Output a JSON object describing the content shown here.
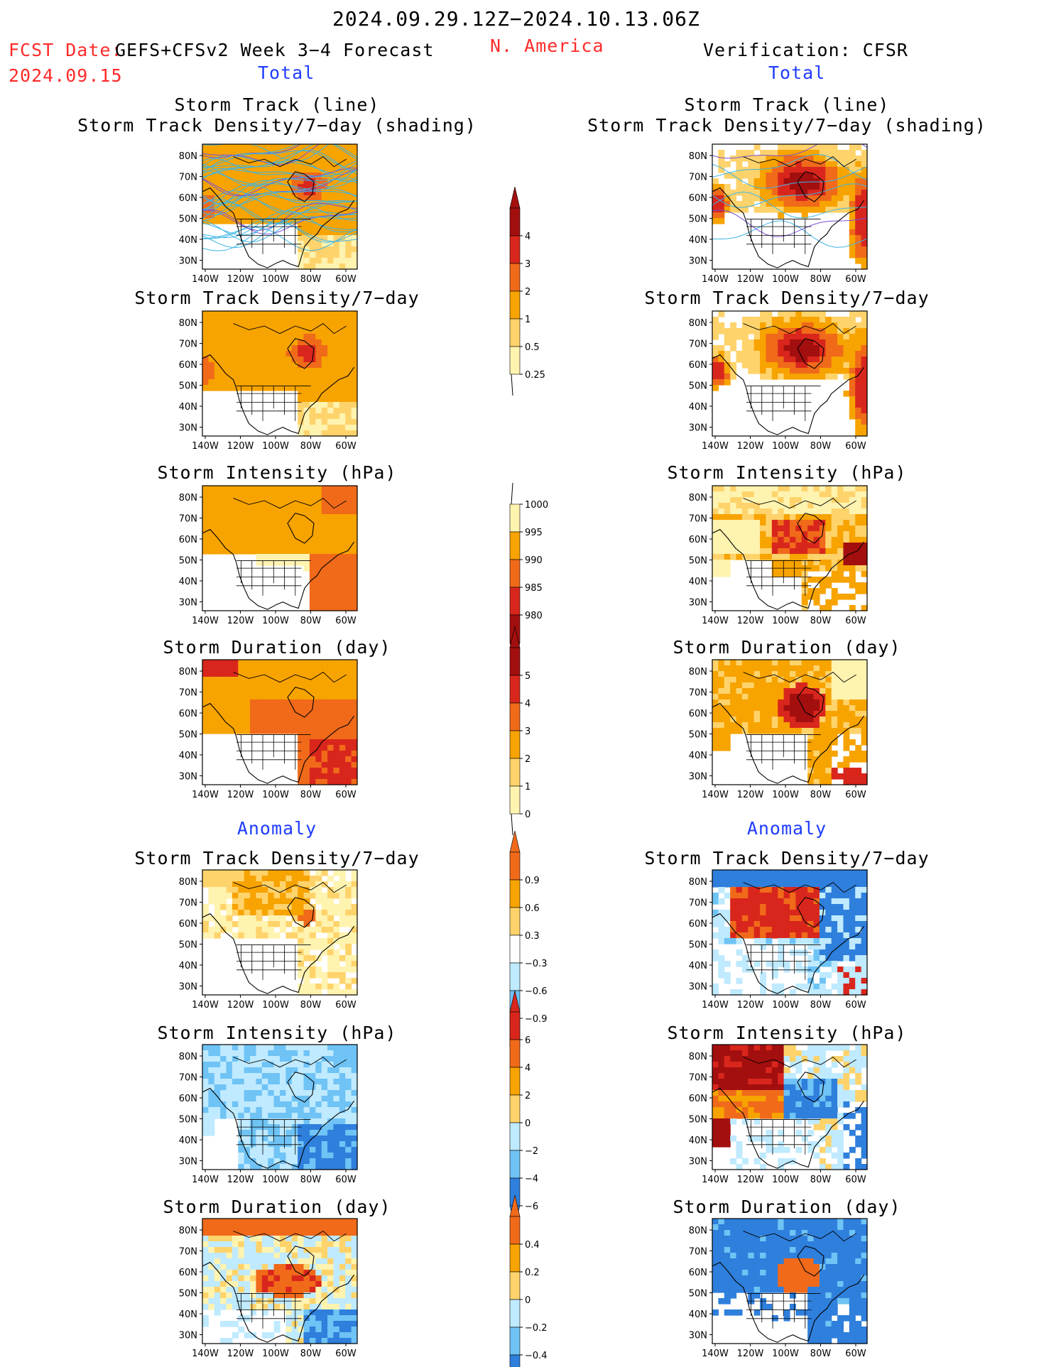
{
  "header": {
    "period": "2024.09.29.12Z−2024.10.13.06Z",
    "fcst_label": "FCST Date:",
    "fcst_model": "GEFS+CFSv2 Week 3−4 Forecast",
    "fcst_date": "2024.09.15",
    "region": "N. America",
    "verification": "Verification: CFSR",
    "total_left": "Total",
    "total_right": "Total",
    "anomaly_left": "Anomaly",
    "anomaly_right": "Anomaly"
  },
  "panels": {
    "p1_title1": "Storm Track (line)",
    "p1_title2": "Storm Track Density/7−day (shading)",
    "p2_title": "Storm Track Density/7−day",
    "p3_title": "Storm Intensity (hPa)",
    "p4_title": "Storm Duration (day)",
    "p5_title": "Storm Track Density/7−day",
    "p6_title": "Storm Intensity (hPa)",
    "p7_title": "Storm Duration (day)"
  },
  "axes": {
    "lat_labels": [
      "80N",
      "70N",
      "60N",
      "50N",
      "40N",
      "30N"
    ],
    "lon_labels": [
      "140W",
      "120W",
      "100W",
      "80W",
      "60W"
    ]
  },
  "colorbars": [
    {
      "id": "density_total",
      "labels": [
        "4",
        "3",
        "2",
        "1",
        "0.5",
        "0.25"
      ]
    },
    {
      "id": "intensity_total",
      "labels": [
        "1000",
        "995",
        "990",
        "985",
        "980"
      ]
    },
    {
      "id": "duration_total",
      "labels": [
        "5",
        "4",
        "3",
        "2",
        "1",
        "0"
      ]
    },
    {
      "id": "density_anom",
      "labels": [
        "0.9",
        "0.6",
        "0.3",
        "−0.3",
        "−0.6",
        "−0.9"
      ]
    },
    {
      "id": "intensity_anom",
      "labels": [
        "6",
        "4",
        "2",
        "0",
        "−2",
        "−4",
        "−6"
      ]
    },
    {
      "id": "duration_anom",
      "labels": [
        "0.4",
        "0.2",
        "0",
        "−0.2",
        "−0.4"
      ]
    }
  ],
  "colors": {
    "header_red": "#ff2a2a",
    "header_blue": "#1f3cff",
    "pale_yellow": "#fff3b0",
    "yellow": "#ffd36b",
    "orange": "#f7a300",
    "dark_orange": "#f06a1a",
    "red": "#d9261c",
    "dark_red": "#a30f0f",
    "light_blue": "#bfeaff",
    "mid_blue": "#6fc3f5",
    "blue": "#2f7fdc"
  }
}
